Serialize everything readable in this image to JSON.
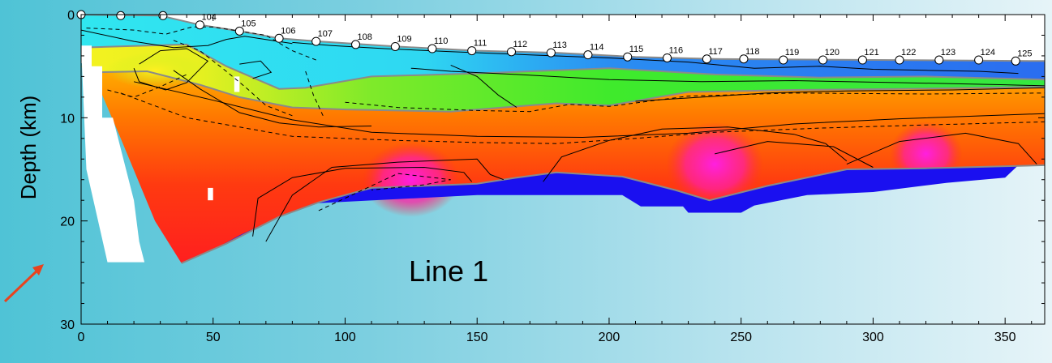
{
  "chart_data": {
    "type": "heatmap",
    "title": "",
    "annotation": "Line 1",
    "xlabel": "",
    "ylabel": "Depth (km)",
    "xlim": [
      0,
      365
    ],
    "ylim": [
      30,
      0
    ],
    "y_inverted": true,
    "x_ticks": [
      0,
      50,
      100,
      150,
      200,
      250,
      300,
      350
    ],
    "y_ticks": [
      0,
      10,
      20,
      30
    ],
    "grid": false,
    "colors": {
      "water_surface": "#ffffff",
      "sediment_top": "#2a6df0",
      "upper_layer_cyan": "#30e6f0",
      "upper_layer_green": "#3fea2c",
      "upper_layer_yellow": "#f4f220",
      "middle_crust_orange": "#ff8a00",
      "lower_crust_red": "#ff2a10",
      "high_velocity_magenta": "#ff1fd8",
      "mantle_blue": "#1a10f0",
      "annotation_arrow": "#e8431e"
    },
    "stations": [
      {
        "id": "104",
        "x": 45,
        "depth": 1.0
      },
      {
        "id": "105",
        "x": 60,
        "depth": 1.6
      },
      {
        "id": "106",
        "x": 75,
        "depth": 2.3
      },
      {
        "id": "107",
        "x": 89,
        "depth": 2.6
      },
      {
        "id": "108",
        "x": 104,
        "depth": 2.9
      },
      {
        "id": "109",
        "x": 119,
        "depth": 3.1
      },
      {
        "id": "110",
        "x": 133,
        "depth": 3.3
      },
      {
        "id": "111",
        "x": 148,
        "depth": 3.5
      },
      {
        "id": "112",
        "x": 163,
        "depth": 3.6
      },
      {
        "id": "113",
        "x": 178,
        "depth": 3.7
      },
      {
        "id": "114",
        "x": 192,
        "depth": 3.9
      },
      {
        "id": "115",
        "x": 207,
        "depth": 4.1
      },
      {
        "id": "116",
        "x": 222,
        "depth": 4.2
      },
      {
        "id": "117",
        "x": 237,
        "depth": 4.3
      },
      {
        "id": "118",
        "x": 251,
        "depth": 4.3
      },
      {
        "id": "119",
        "x": 266,
        "depth": 4.4
      },
      {
        "id": "120",
        "x": 281,
        "depth": 4.4
      },
      {
        "id": "121",
        "x": 296,
        "depth": 4.4
      },
      {
        "id": "122",
        "x": 310,
        "depth": 4.4
      },
      {
        "id": "123",
        "x": 325,
        "depth": 4.4
      },
      {
        "id": "124",
        "x": 340,
        "depth": 4.4
      },
      {
        "id": "125",
        "x": 354,
        "depth": 4.5
      }
    ],
    "unlabeled_stations": [
      {
        "x": 0,
        "depth": 0.0
      },
      {
        "x": 15,
        "depth": 0.1
      },
      {
        "x": 31,
        "depth": 0.1
      }
    ],
    "layers": [
      {
        "name": "seafloor",
        "points": [
          [
            0,
            0
          ],
          [
            30,
            0.1
          ],
          [
            45,
            1.0
          ],
          [
            60,
            1.6
          ],
          [
            75,
            2.3
          ],
          [
            90,
            2.6
          ],
          [
            120,
            3.1
          ],
          [
            150,
            3.5
          ],
          [
            180,
            3.7
          ],
          [
            210,
            4.1
          ],
          [
            240,
            4.3
          ],
          [
            300,
            4.4
          ],
          [
            365,
            4.5
          ]
        ]
      },
      {
        "name": "upper-boundary",
        "points": [
          [
            0,
            1.7
          ],
          [
            30,
            2.0
          ],
          [
            40,
            2.2
          ],
          [
            60,
            3.0
          ],
          [
            80,
            3.8
          ],
          [
            100,
            4.0
          ],
          [
            150,
            4.4
          ],
          [
            200,
            4.9
          ],
          [
            240,
            5.7
          ],
          [
            300,
            5.8
          ],
          [
            340,
            5.9
          ],
          [
            365,
            6.0
          ]
        ]
      },
      {
        "name": "sediment-base",
        "points": [
          [
            0,
            3.2
          ],
          [
            25,
            3.0
          ],
          [
            40,
            2.9
          ],
          [
            55,
            5.0
          ],
          [
            75,
            7.2
          ],
          [
            85,
            7.1
          ],
          [
            110,
            6.0
          ],
          [
            150,
            5.7
          ],
          [
            200,
            5.2
          ],
          [
            240,
            5.8
          ],
          [
            280,
            6.1
          ],
          [
            320,
            6.0
          ],
          [
            365,
            6.3
          ]
        ]
      },
      {
        "name": "upper-crust-base",
        "points": [
          [
            3,
            5.6
          ],
          [
            25,
            5.5
          ],
          [
            45,
            6.8
          ],
          [
            60,
            8.0
          ],
          [
            80,
            9.0
          ],
          [
            100,
            9.2
          ],
          [
            140,
            9.4
          ],
          [
            180,
            8.6
          ],
          [
            200,
            8.8
          ],
          [
            230,
            7.5
          ],
          [
            270,
            7.3
          ],
          [
            310,
            7.2
          ],
          [
            365,
            7.0
          ]
        ]
      },
      {
        "name": "moho",
        "points": [
          [
            38,
            24.1
          ],
          [
            55,
            22.2
          ],
          [
            75,
            19.6
          ],
          [
            90,
            18.2
          ],
          [
            110,
            16.8
          ],
          [
            150,
            16.4
          ],
          [
            165,
            15.8
          ],
          [
            180,
            15.3
          ],
          [
            205,
            15.7
          ],
          [
            225,
            17.0
          ],
          [
            238,
            18.0
          ],
          [
            260,
            16.6
          ],
          [
            290,
            15.0
          ],
          [
            320,
            14.9
          ],
          [
            365,
            14.6
          ]
        ]
      }
    ],
    "mantle_blocks": [
      [
        [
          38,
          24.1
        ],
        [
          50,
          22.8
        ],
        [
          60,
          21.4
        ],
        [
          75,
          19.6
        ],
        [
          88,
          18.3
        ],
        [
          150,
          17.5
        ],
        [
          205,
          17.5
        ],
        [
          212,
          18.6
        ],
        [
          228,
          18.6
        ],
        [
          230,
          19.2
        ],
        [
          250,
          19.2
        ],
        [
          255,
          18.5
        ],
        [
          275,
          17.5
        ],
        [
          300,
          17.2
        ],
        [
          328,
          16.3
        ],
        [
          350,
          15.8
        ],
        [
          355,
          14.6
        ],
        [
          320,
          14.9
        ],
        [
          290,
          15.0
        ],
        [
          260,
          16.6
        ],
        [
          238,
          18.0
        ],
        [
          225,
          17.0
        ],
        [
          205,
          15.7
        ],
        [
          180,
          15.3
        ],
        [
          165,
          15.8
        ],
        [
          150,
          16.4
        ],
        [
          110,
          16.8
        ],
        [
          90,
          18.2
        ],
        [
          75,
          19.6
        ],
        [
          55,
          22.2
        ]
      ]
    ],
    "contours": [
      [
        [
          0,
          1.5
        ],
        [
          20,
          2.6
        ],
        [
          35,
          3.2
        ],
        [
          48,
          3.0
        ],
        [
          55,
          2.4
        ],
        [
          62,
          2.1
        ],
        [
          80,
          2.8
        ]
      ],
      [
        [
          80,
          2.7
        ],
        [
          95,
          3.0
        ],
        [
          115,
          3.3
        ],
        [
          140,
          3.6
        ],
        [
          170,
          3.9
        ],
        [
          200,
          4.2
        ],
        [
          230,
          4.6
        ],
        [
          255,
          5.2
        ],
        [
          280,
          5.0
        ],
        [
          300,
          5.3
        ],
        [
          320,
          5.4
        ],
        [
          340,
          5.5
        ],
        [
          355,
          5.7
        ]
      ],
      [
        [
          22,
          4.8
        ],
        [
          30,
          3.5
        ],
        [
          40,
          3.3
        ],
        [
          48,
          4.5
        ],
        [
          40,
          6.6
        ],
        [
          32,
          7.3
        ],
        [
          22,
          6.5
        ],
        [
          20,
          5.2
        ]
      ],
      [
        [
          60,
          4.8
        ],
        [
          68,
          4.5
        ],
        [
          72,
          5.6
        ],
        [
          65,
          6.2
        ]
      ],
      [
        [
          125,
          5.2
        ],
        [
          140,
          5.5
        ],
        [
          165,
          5.8
        ],
        [
          200,
          6.3
        ],
        [
          235,
          6.5
        ],
        [
          270,
          6.4
        ],
        [
          310,
          6.6
        ],
        [
          350,
          6.8
        ],
        [
          365,
          6.9
        ]
      ],
      [
        [
          140,
          4.9
        ],
        [
          150,
          6.0
        ],
        [
          158,
          7.8
        ],
        [
          165,
          9.0
        ]
      ],
      [
        [
          20,
          6.5
        ],
        [
          50,
          8.3
        ],
        [
          80,
          10.2
        ],
        [
          110,
          11.4
        ],
        [
          150,
          11.8
        ],
        [
          190,
          11.9
        ],
        [
          230,
          11.5
        ],
        [
          270,
          10.6
        ],
        [
          310,
          10.1
        ],
        [
          365,
          9.6
        ]
      ],
      [
        [
          35,
          5.4
        ],
        [
          45,
          7.2
        ],
        [
          60,
          9.5
        ],
        [
          75,
          10.5
        ],
        [
          90,
          10.9
        ],
        [
          110,
          10.8
        ]
      ],
      [
        [
          210,
          8.4
        ],
        [
          235,
          8.0
        ],
        [
          260,
          7.6
        ],
        [
          290,
          7.4
        ],
        [
          330,
          7.3
        ],
        [
          365,
          7.1
        ]
      ],
      [
        [
          70,
          22.0
        ],
        [
          80,
          17.5
        ],
        [
          95,
          14.8
        ],
        [
          120,
          14.3
        ],
        [
          150,
          14.0
        ],
        [
          155,
          15.5
        ],
        [
          160,
          16.0
        ]
      ],
      [
        [
          65,
          21.5
        ],
        [
          67,
          17.8
        ],
        [
          80,
          15.8
        ],
        [
          100,
          14.9
        ],
        [
          130,
          14.8
        ],
        [
          145,
          15.3
        ],
        [
          148,
          16.2
        ]
      ],
      [
        [
          175,
          16.2
        ],
        [
          182,
          13.8
        ],
        [
          200,
          12.2
        ],
        [
          220,
          11.1
        ],
        [
          245,
          10.9
        ],
        [
          270,
          11.6
        ],
        [
          282,
          12.5
        ],
        [
          290,
          14.2
        ]
      ],
      [
        [
          240,
          13.5
        ],
        [
          260,
          12.3
        ],
        [
          285,
          12.8
        ],
        [
          300,
          14.8
        ]
      ],
      [
        [
          290,
          14.5
        ],
        [
          310,
          12.3
        ],
        [
          335,
          11.5
        ],
        [
          355,
          12.5
        ],
        [
          362,
          14.5
        ]
      ]
    ],
    "contours_dashed": [
      [
        [
          2,
          1.3
        ],
        [
          20,
          1.5
        ],
        [
          32,
          1.9
        ],
        [
          42,
          1.2
        ],
        [
          50,
          1.2
        ],
        [
          70,
          2.0
        ],
        [
          80,
          3.5
        ],
        [
          90,
          4.5
        ]
      ],
      [
        [
          35,
          2.5
        ],
        [
          45,
          3.5
        ],
        [
          55,
          5.5
        ],
        [
          63,
          7.2
        ],
        [
          70,
          8.8
        ],
        [
          80,
          9.8
        ]
      ],
      [
        [
          10,
          7.3
        ],
        [
          20,
          8.0
        ],
        [
          30,
          7.0
        ],
        [
          40,
          5.8
        ]
      ],
      [
        [
          85,
          5.5
        ],
        [
          88,
          7.8
        ],
        [
          92,
          10.0
        ]
      ],
      [
        [
          100,
          8.5
        ],
        [
          120,
          9.0
        ],
        [
          150,
          9.3
        ],
        [
          170,
          9.4
        ],
        [
          185,
          8.7
        ],
        [
          200,
          8.9
        ],
        [
          230,
          7.9
        ],
        [
          270,
          7.6
        ],
        [
          320,
          7.7
        ],
        [
          365,
          7.6
        ]
      ],
      [
        [
          15,
          7.6
        ],
        [
          40,
          10.0
        ],
        [
          80,
          11.8
        ],
        [
          120,
          12.2
        ],
        [
          150,
          12.4
        ],
        [
          180,
          12.5
        ],
        [
          210,
          12.0
        ],
        [
          240,
          11.4
        ],
        [
          280,
          11.0
        ],
        [
          320,
          10.7
        ],
        [
          365,
          10.4
        ]
      ],
      [
        [
          90,
          19.0
        ],
        [
          120,
          15.4
        ],
        [
          140,
          16.0
        ],
        [
          130,
          16.5
        ],
        [
          110,
          17.0
        ]
      ]
    ],
    "white_patches": [
      [
        [
          0,
          3
        ],
        [
          4,
          3
        ],
        [
          4,
          5
        ],
        [
          8,
          5
        ],
        [
          8,
          10
        ],
        [
          12,
          10
        ],
        [
          16,
          14
        ],
        [
          20,
          18
        ],
        [
          22,
          22
        ],
        [
          24,
          24
        ],
        [
          10,
          24
        ],
        [
          2,
          15
        ]
      ],
      [
        [
          58,
          6.0
        ],
        [
          60,
          6.0
        ],
        [
          60,
          7.5
        ],
        [
          58,
          7.5
        ]
      ],
      [
        [
          48,
          16.8
        ],
        [
          50,
          16.8
        ],
        [
          50,
          18.0
        ],
        [
          48,
          18.0
        ]
      ]
    ]
  }
}
